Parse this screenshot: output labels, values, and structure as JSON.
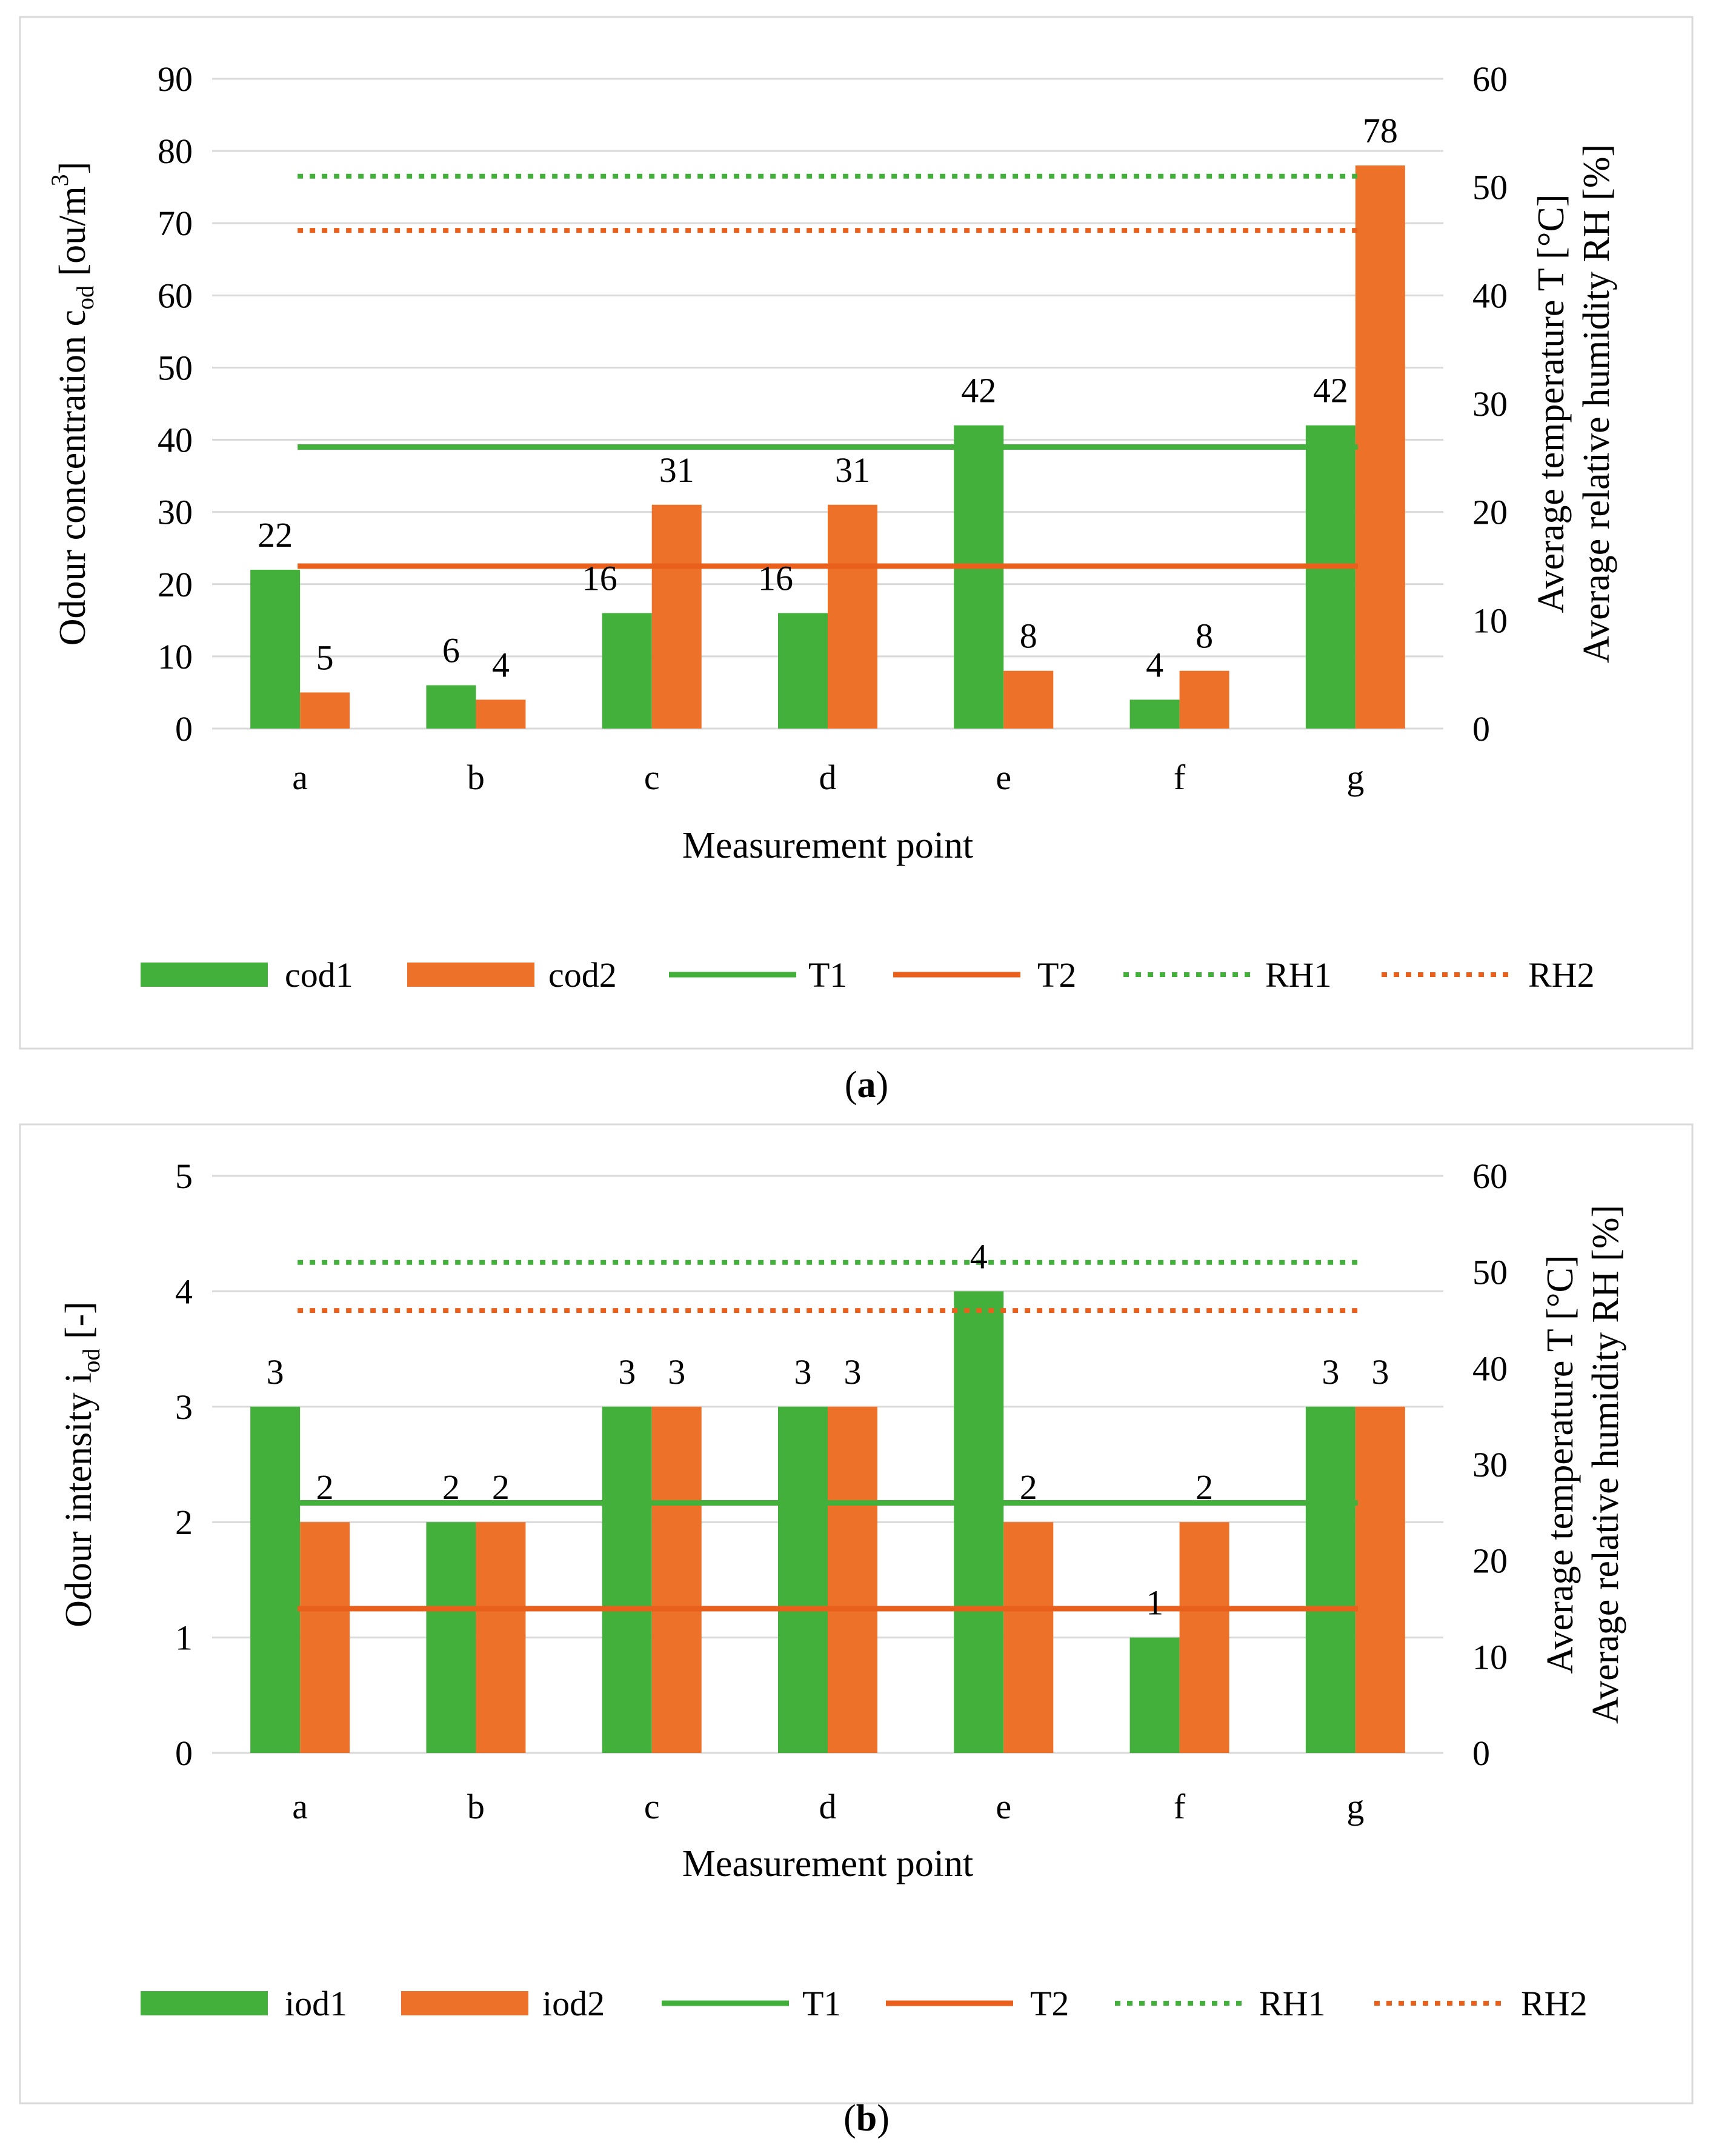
{
  "colors": {
    "green": "#43B03C",
    "orange": "#EE7129",
    "green_line": "#43B03C",
    "orange_line": "#E8601C",
    "grid": "#D9D9D9",
    "frame": "#D9D9D9"
  },
  "chart_data": [
    {
      "id": "a",
      "type": "bar",
      "panel_label": "a",
      "categories": [
        "a",
        "b",
        "c",
        "d",
        "e",
        "f",
        "g"
      ],
      "series": [
        {
          "name": "cod1",
          "kind": "bar",
          "color": "green",
          "values": [
            22,
            6,
            16,
            16,
            42,
            4,
            42
          ],
          "labels": [
            "22",
            "6",
            "16",
            "16",
            "42",
            "4",
            "42"
          ]
        },
        {
          "name": "cod2",
          "kind": "bar",
          "color": "orange",
          "values": [
            5,
            4,
            31,
            31,
            8,
            8,
            78
          ],
          "labels": [
            "5",
            "4",
            "31",
            "31",
            "8",
            "8",
            "78"
          ]
        }
      ],
      "lines": [
        {
          "name": "T1",
          "style": "solid",
          "color": "green_line",
          "value": 26
        },
        {
          "name": "T2",
          "style": "solid",
          "color": "orange_line",
          "value": 15
        },
        {
          "name": "RH1",
          "style": "dotted",
          "color": "green_line",
          "value": 51
        },
        {
          "name": "RH2",
          "style": "dotted",
          "color": "orange_line",
          "value": 46
        }
      ],
      "y_left": {
        "min": 0,
        "max": 90,
        "ticks": [
          "0",
          "10",
          "20",
          "30",
          "40",
          "50",
          "60",
          "70",
          "80",
          "90"
        ]
      },
      "y_right": {
        "min": 0,
        "max": 60,
        "ticks": [
          "0",
          "10",
          "20",
          "30",
          "40",
          "50",
          "60"
        ]
      },
      "ylabel_left_main": "Odour concentration c",
      "ylabel_left_sub": "od",
      "ylabel_left_tail": " [ou/m",
      "ylabel_left_sup": "3",
      "ylabel_left_end": "]",
      "ylabel_right_1": "Average temperature T [°C]",
      "ylabel_right_2": "Average relative humidity RH [%]",
      "xlabel": "Measurement point",
      "legend": [
        "cod1",
        "cod2",
        "T1",
        "T2",
        "RH1",
        "RH2"
      ],
      "legend_position": "bottom"
    },
    {
      "id": "b",
      "type": "bar",
      "panel_label": "b",
      "categories": [
        "a",
        "b",
        "c",
        "d",
        "e",
        "f",
        "g"
      ],
      "series": [
        {
          "name": "iod1",
          "kind": "bar",
          "color": "green",
          "values": [
            3,
            2,
            3,
            3,
            4,
            1,
            3
          ],
          "labels": [
            "3",
            "2",
            "3",
            "3",
            "4",
            "1",
            "3"
          ]
        },
        {
          "name": "iod2",
          "kind": "bar",
          "color": "orange",
          "values": [
            2,
            2,
            3,
            3,
            2,
            2,
            3
          ],
          "labels": [
            "2",
            "2",
            "3",
            "3",
            "2",
            "2",
            "3"
          ]
        }
      ],
      "lines": [
        {
          "name": "T1",
          "style": "solid",
          "color": "green_line",
          "value": 26
        },
        {
          "name": "T2",
          "style": "solid",
          "color": "orange_line",
          "value": 15
        },
        {
          "name": "RH1",
          "style": "dotted",
          "color": "green_line",
          "value": 51
        },
        {
          "name": "RH2",
          "style": "dotted",
          "color": "orange_line",
          "value": 46
        }
      ],
      "y_left": {
        "min": 0,
        "max": 5,
        "ticks": [
          "0",
          "1",
          "2",
          "3",
          "4",
          "5"
        ]
      },
      "y_right": {
        "min": 0,
        "max": 60,
        "ticks": [
          "0",
          "10",
          "20",
          "30",
          "40",
          "50",
          "60"
        ]
      },
      "ylabel_left_main": "Odour intensity i",
      "ylabel_left_sub": "od",
      "ylabel_left_tail": " [-]",
      "ylabel_left_sup": "",
      "ylabel_left_end": "",
      "ylabel_right_1": "Average temperature T [°C]",
      "ylabel_right_2": "Average relative humidity RH [%]",
      "xlabel": "Measurement point",
      "legend": [
        "iod1",
        "iod2",
        "T1",
        "T2",
        "RH1",
        "RH2"
      ],
      "legend_position": "bottom"
    }
  ]
}
